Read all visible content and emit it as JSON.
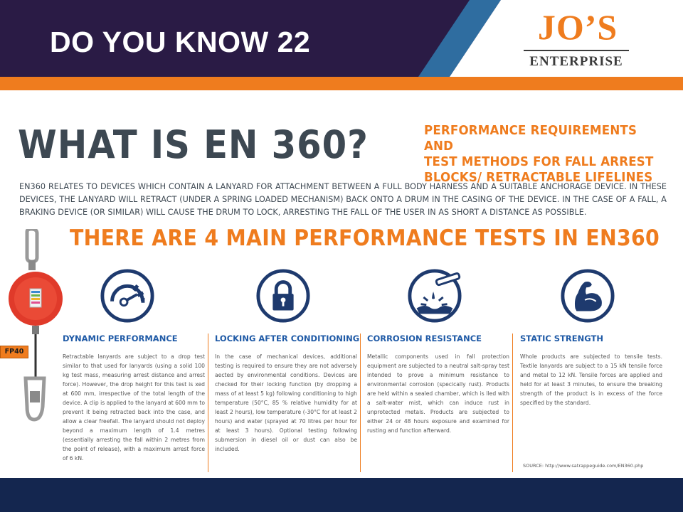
{
  "header": {
    "title": "DO YOU KNOW 22",
    "logo_main": "JO’S",
    "logo_sub": "ENTERPRISE"
  },
  "infographic": {
    "title": "WHAT IS EN 360?",
    "subtitle_lines": [
      "PERFORMANCE REQUIREMENTS AND",
      "TEST METHODS FOR FALL ARREST",
      "BLOCKS/ RETRACTABLE LIFELINES"
    ],
    "intro": "EN360 RELATES TO DEVICES WHICH CONTAIN A LANYARD FOR ATTACHMENT BETWEEN A FULL BODY HARNESS AND A SUITABLE ANCHORAGE DEVICE. IN THESE DEVICES, THE LANYARD WILL RETRACT (UNDER A SPRING LOADED MECHANISM) BACK ONTO A DRUM IN THE CASING OF THE DEVICE. IN THE CASE OF A FALL, A BRAKING DEVICE (OR SIMILAR) WILL CAUSE THE DRUM TO LOCK, ARRESTING THE FALL OF THE USER IN AS SHORT A DISTANCE AS POSSIBLE.",
    "tests_heading": "THERE ARE 4 MAIN PERFORMANCE TESTS IN EN360",
    "product_label": "FP40",
    "tests": [
      {
        "icon": "speedometer-icon",
        "title": "DYNAMIC PERFORMANCE",
        "text": "Retractable lanyards are subject to a drop test similar to that used for lanyards (using a solid 100 kg test mass, measuring arrest distance and arrest force). However, the drop height for this test is xed at 600 mm, irrespective of the total length of the device. A clip is applied to the lanyard at 600 mm to prevent it being retracted back into the case, and allow a clear freefall. The lanyard should not deploy beyond a maximum length of 1.4 metres (essentially arresting the fall within 2 metres from the point of release), with a maximum arrest force of 6 kN."
      },
      {
        "icon": "padlock-icon",
        "title": "LOCKING AFTER CONDITIONING",
        "text": "In the case of mechanical devices, additional testing is required to ensure they are not adversely aected by environmental conditions. Devices are checked for their locking function (by dropping a mass of at least 5 kg) following conditioning to high temperature (50°C, 85 % relative humidity for at least 2 hours), low temperature (-30°C for at least 2 hours) and water (sprayed at 70 litres per hour for at least 3 hours). Optional testing following submersion in diesel oil or dust can also be included."
      },
      {
        "icon": "corrosion-icon",
        "title": "CORROSION RESISTANCE",
        "text": "Metallic components used in fall protection equipment are subjected to a neutral salt-spray test intended to prove a minimum resistance to environmental corrosion (specically rust). Products are held within a sealed chamber, which is lled with a salt-water mist, which can induce rust in unprotected metals. Products are subjected to either 24 or 48 hours exposure and examined for rusting and function afterward."
      },
      {
        "icon": "flexed-arm-icon",
        "title": "STATIC STRENGTH",
        "text": "Whole products are subjected to tensile tests. Textile lanyards are subject to a 15 kN tensile force and metal to 12 kN. Tensile forces are applied and held for at least 3 minutes, to ensure the breaking strength of the product is in excess of the force specified by the standard."
      }
    ],
    "source": "SOURCE: http://www.satrappeguide.com/EN360.php"
  },
  "colors": {
    "header_bg": "#2a1b45",
    "accent_orange": "#ef7c1e",
    "accent_blue": "#1f5aa6",
    "stripe_blue": "#2f6da0",
    "footer_bg": "#14264f"
  }
}
